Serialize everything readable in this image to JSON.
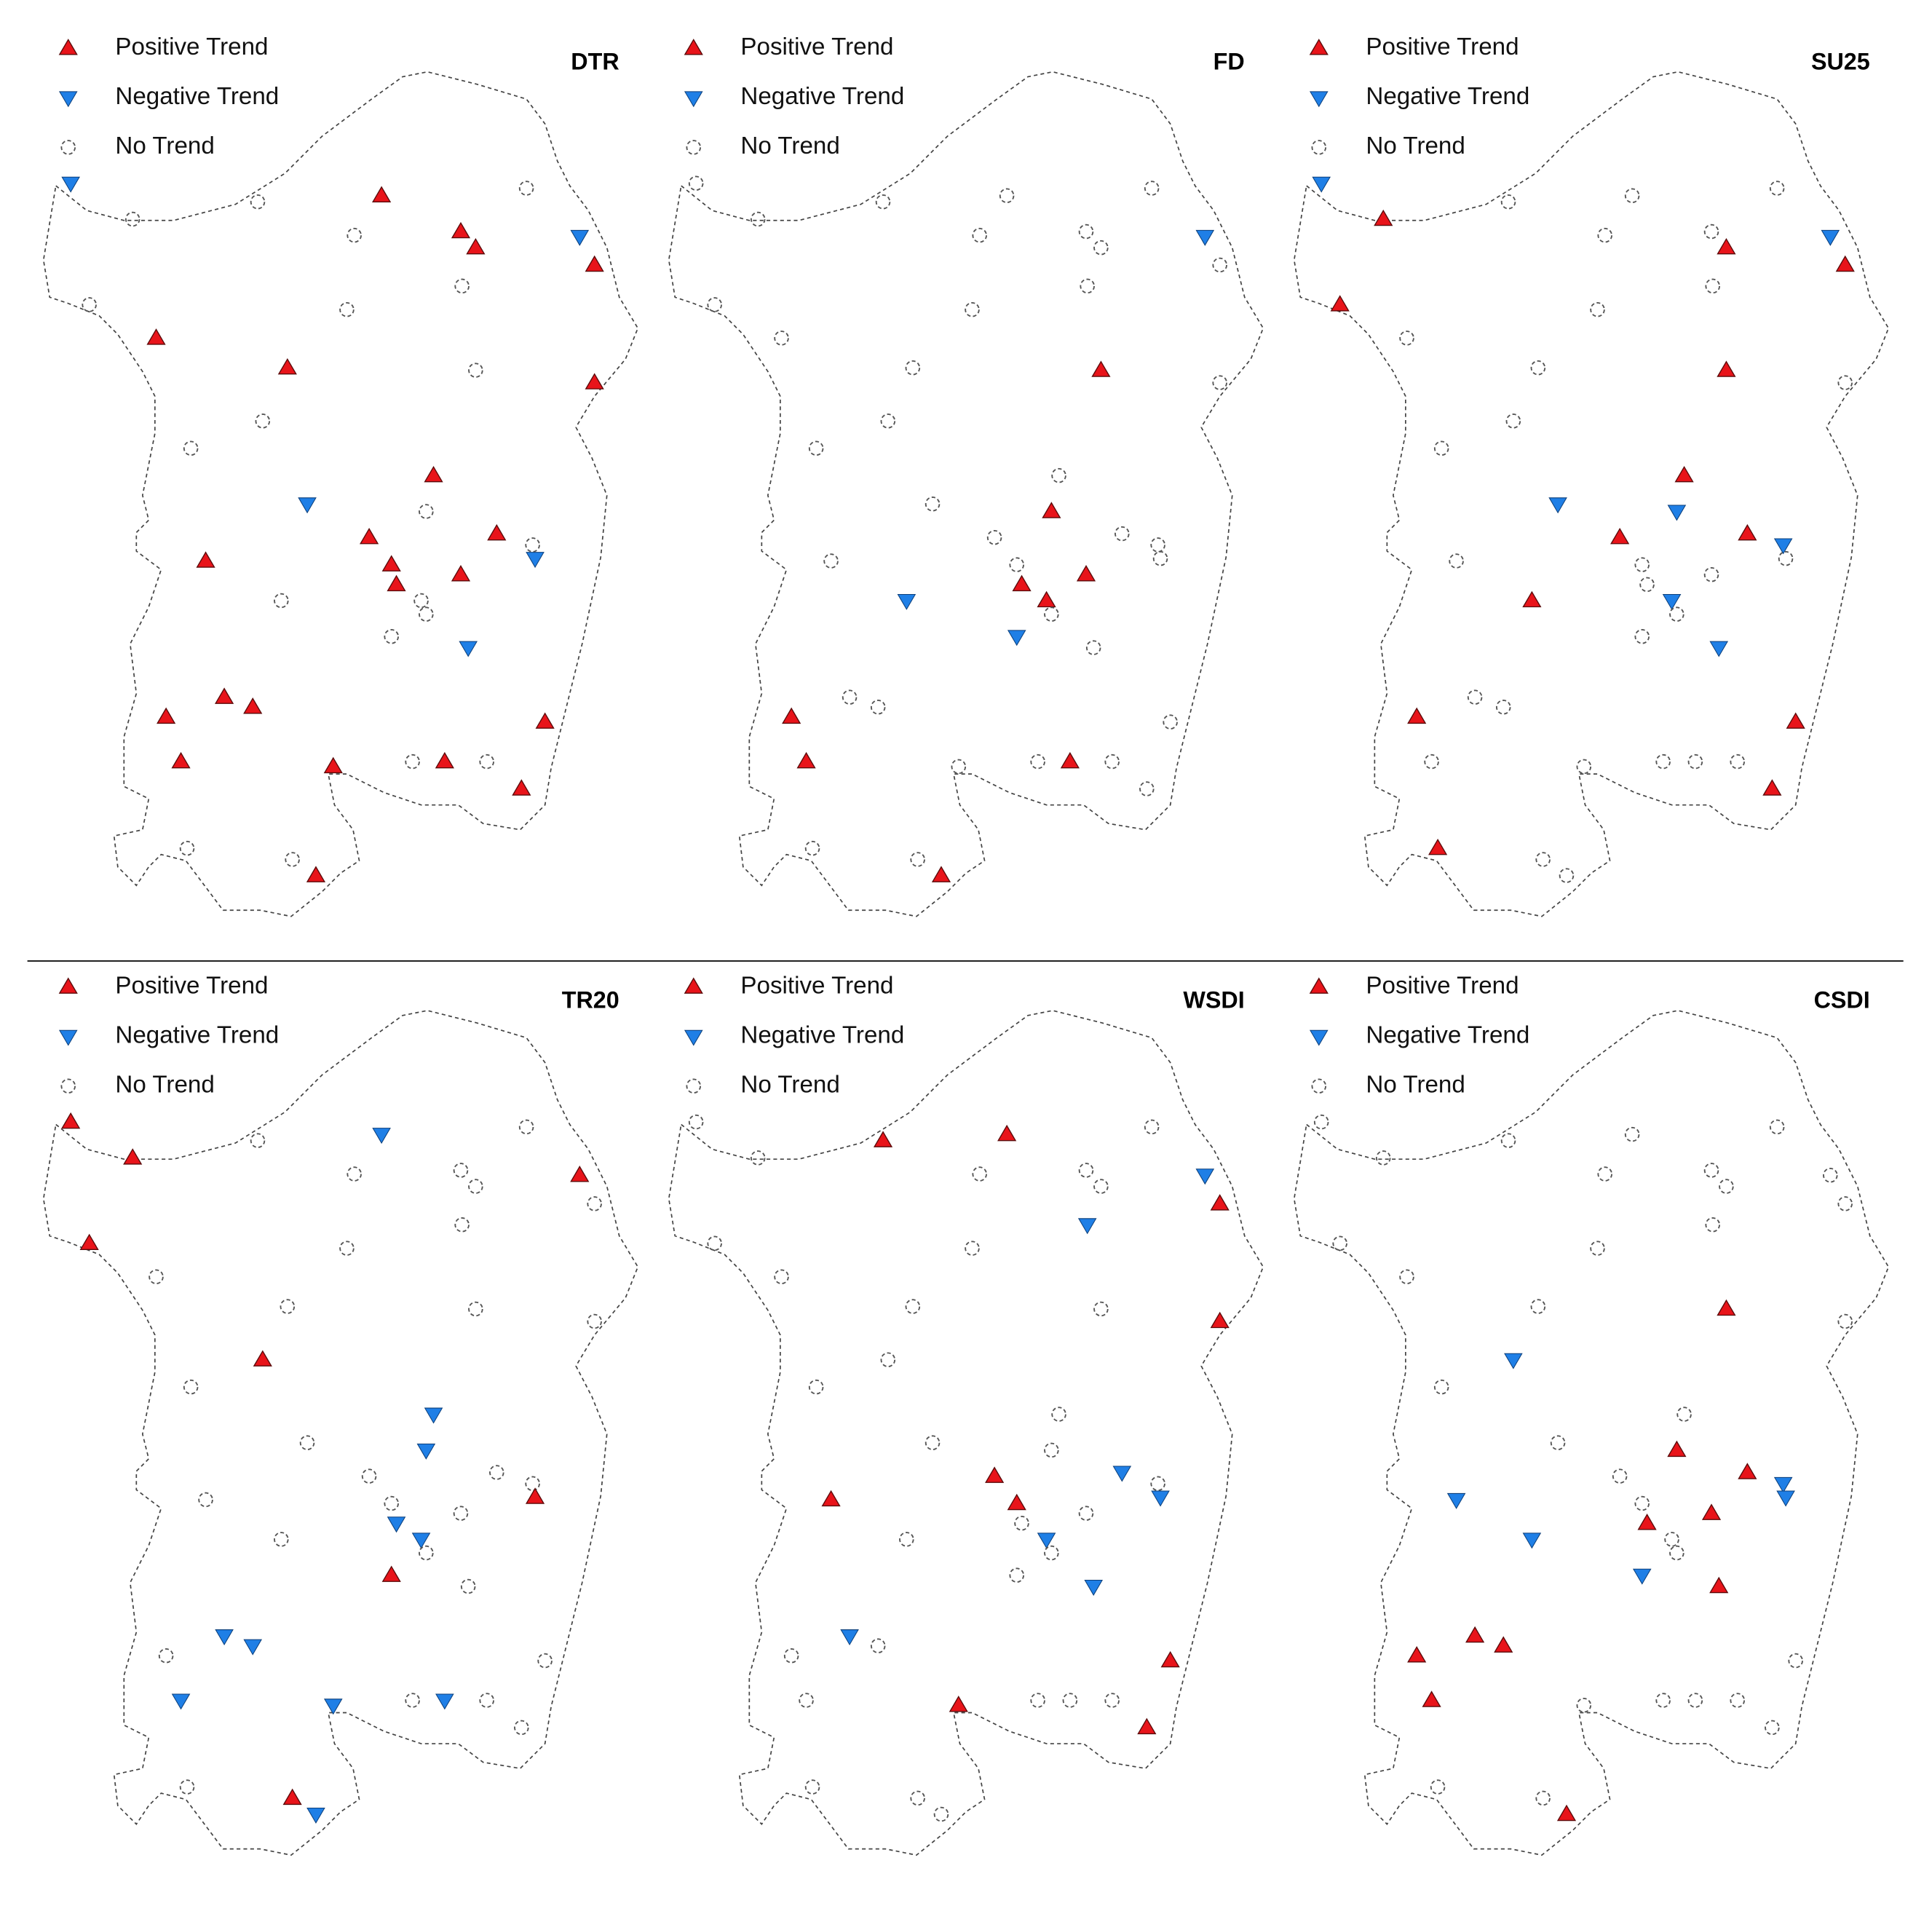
{
  "panels": [
    {
      "title": "DTR",
      "legend": [
        "Positive Trend",
        "Negative Trend",
        "No Trend"
      ]
    },
    {
      "title": "FD",
      "legend": [
        "Positive Trend",
        "Negative Trend",
        "No Trend"
      ]
    },
    {
      "title": "SU25",
      "legend": [
        "Positive Trend",
        "Negative Trend",
        "No Trend"
      ]
    },
    {
      "title": "TR20",
      "legend": [
        "Positive Trend",
        "Negative Trend",
        "No Trend"
      ]
    },
    {
      "title": "WSDI",
      "legend": [
        "Positive Trend",
        "Negative Trend",
        "No Trend"
      ]
    },
    {
      "title": "CSDI",
      "legend": [
        "Positive Trend",
        "Negative Trend",
        "No Trend"
      ]
    }
  ]
}
